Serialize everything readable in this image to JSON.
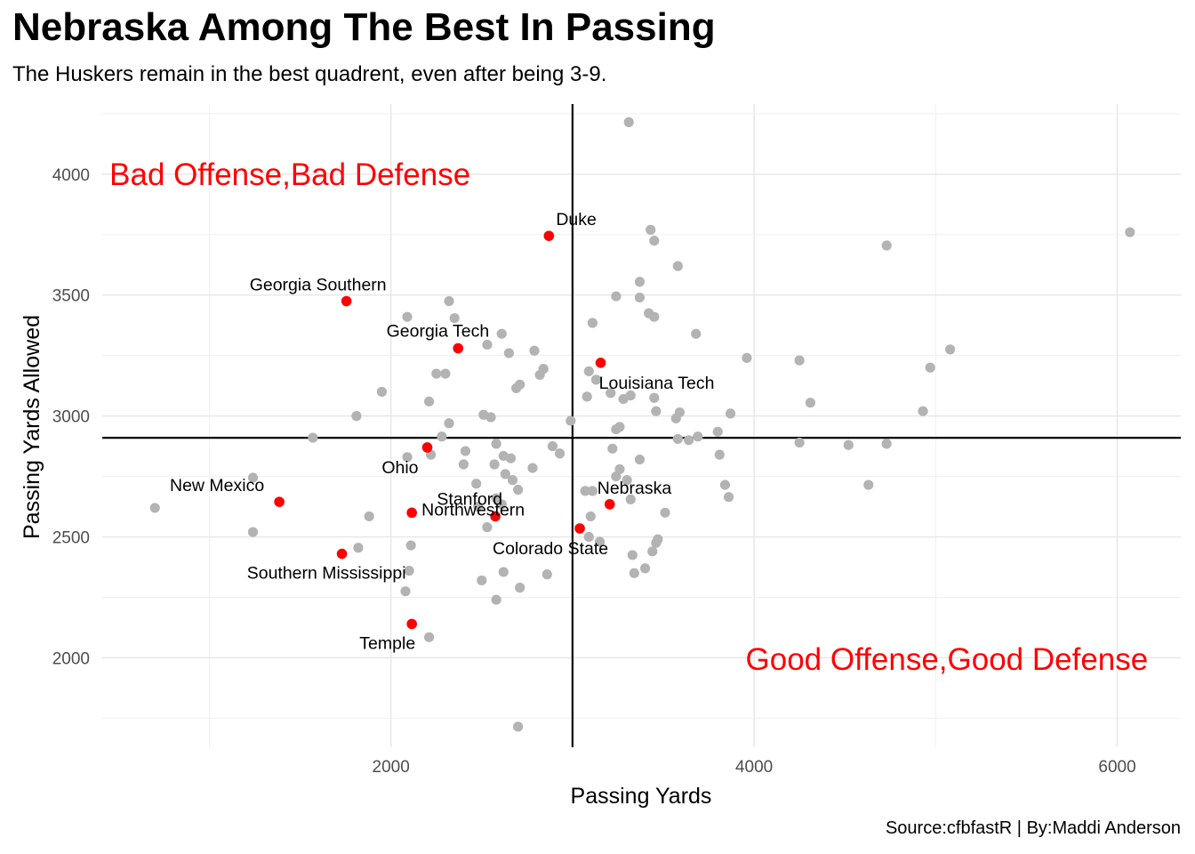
{
  "title": "Nebraska Among The Best In Passing",
  "subtitle": "The Huskers remain in the best quadrent, even after being 3-9.",
  "caption": "Source:cfbfastR | By:Maddi Anderson",
  "chart_data": {
    "type": "scatter",
    "xlabel": "Passing Yards",
    "ylabel": "Passing Yards Allowed",
    "xlim": [
      410,
      6350
    ],
    "ylim": [
      1630,
      4290
    ],
    "x_ticks": [
      2000,
      4000,
      6000
    ],
    "y_ticks": [
      2000,
      2500,
      3000,
      3500,
      4000
    ],
    "grid": true,
    "reference_lines": {
      "x": 3000,
      "y": 2910
    },
    "annotations": [
      {
        "text": "Bad Offense,Bad Defense",
        "x": 450,
        "y": 4000,
        "anchor": "start",
        "color": "#ff0000"
      },
      {
        "text": "Good Offense,Good Defense",
        "x": 6170,
        "y": 1995,
        "anchor": "end",
        "color": "#ff0000"
      }
    ],
    "highlight_color": "#ff0000",
    "base_color": "#b3b3b3",
    "highlighted": [
      {
        "label": "Duke",
        "x": 2870,
        "y": 3745,
        "label_pos": "above-right"
      },
      {
        "label": "Georgia Southern",
        "x": 1755,
        "y": 3475,
        "label_pos": "above-left"
      },
      {
        "label": "Georgia Tech",
        "x": 2370,
        "y": 3280,
        "label_pos": "above-left"
      },
      {
        "label": "Louisiana Tech",
        "x": 3155,
        "y": 3220,
        "label_pos": "below-right"
      },
      {
        "label": "Ohio",
        "x": 2200,
        "y": 2870,
        "label_pos": "below-left"
      },
      {
        "label": "New Mexico",
        "x": 1385,
        "y": 2645,
        "label_pos": "above-left"
      },
      {
        "label": "Northwestern",
        "x": 2115,
        "y": 2600,
        "label_pos": "above-left"
      },
      {
        "label": "Stanford",
        "x": 2575,
        "y": 2585,
        "label_pos": "above-left"
      },
      {
        "label": "Nebraska",
        "x": 3205,
        "y": 2635,
        "label_pos": "above-right"
      },
      {
        "label": "Colorado State",
        "x": 3040,
        "y": 2535,
        "label_pos": "below-left"
      },
      {
        "label": "Southern Mississippi",
        "x": 1730,
        "y": 2430,
        "label_pos": "below-left"
      },
      {
        "label": "Temple",
        "x": 2115,
        "y": 2140,
        "label_pos": "below-left"
      }
    ],
    "points": [
      {
        "x": 3310,
        "y": 4215
      },
      {
        "x": 6070,
        "y": 3760
      },
      {
        "x": 3430,
        "y": 3770
      },
      {
        "x": 3450,
        "y": 3725
      },
      {
        "x": 4730,
        "y": 3705
      },
      {
        "x": 3580,
        "y": 3620
      },
      {
        "x": 3370,
        "y": 3555
      },
      {
        "x": 3240,
        "y": 3495
      },
      {
        "x": 3370,
        "y": 3490
      },
      {
        "x": 2320,
        "y": 3475
      },
      {
        "x": 3420,
        "y": 3425
      },
      {
        "x": 3450,
        "y": 3410
      },
      {
        "x": 2090,
        "y": 3410
      },
      {
        "x": 2350,
        "y": 3405
      },
      {
        "x": 3110,
        "y": 3385
      },
      {
        "x": 3680,
        "y": 3340
      },
      {
        "x": 2610,
        "y": 3340
      },
      {
        "x": 2530,
        "y": 3295
      },
      {
        "x": 2790,
        "y": 3270
      },
      {
        "x": 2650,
        "y": 3260
      },
      {
        "x": 5080,
        "y": 3275
      },
      {
        "x": 3960,
        "y": 3240
      },
      {
        "x": 4250,
        "y": 3230
      },
      {
        "x": 4970,
        "y": 3200
      },
      {
        "x": 2840,
        "y": 3195
      },
      {
        "x": 3090,
        "y": 3185
      },
      {
        "x": 2820,
        "y": 3170
      },
      {
        "x": 2300,
        "y": 3175
      },
      {
        "x": 2250,
        "y": 3175
      },
      {
        "x": 3130,
        "y": 3150
      },
      {
        "x": 2710,
        "y": 3130
      },
      {
        "x": 2690,
        "y": 3115
      },
      {
        "x": 1950,
        "y": 3100
      },
      {
        "x": 3210,
        "y": 3095
      },
      {
        "x": 3320,
        "y": 3085
      },
      {
        "x": 3450,
        "y": 3075
      },
      {
        "x": 3280,
        "y": 3070
      },
      {
        "x": 3080,
        "y": 3080
      },
      {
        "x": 2210,
        "y": 3060
      },
      {
        "x": 4310,
        "y": 3055
      },
      {
        "x": 3590,
        "y": 3015
      },
      {
        "x": 4930,
        "y": 3020
      },
      {
        "x": 3460,
        "y": 3020
      },
      {
        "x": 3870,
        "y": 3010
      },
      {
        "x": 2510,
        "y": 3005
      },
      {
        "x": 2550,
        "y": 2995
      },
      {
        "x": 1810,
        "y": 3000
      },
      {
        "x": 3570,
        "y": 2990
      },
      {
        "x": 2990,
        "y": 2980
      },
      {
        "x": 2320,
        "y": 2970
      },
      {
        "x": 3260,
        "y": 2955
      },
      {
        "x": 3240,
        "y": 2945
      },
      {
        "x": 3800,
        "y": 2935
      },
      {
        "x": 3690,
        "y": 2915
      },
      {
        "x": 2280,
        "y": 2915
      },
      {
        "x": 1570,
        "y": 2910
      },
      {
        "x": 3580,
        "y": 2905
      },
      {
        "x": 3640,
        "y": 2900
      },
      {
        "x": 4250,
        "y": 2890
      },
      {
        "x": 4730,
        "y": 2885
      },
      {
        "x": 4520,
        "y": 2880
      },
      {
        "x": 2580,
        "y": 2885
      },
      {
        "x": 2890,
        "y": 2875
      },
      {
        "x": 3220,
        "y": 2865
      },
      {
        "x": 2410,
        "y": 2855
      },
      {
        "x": 2930,
        "y": 2845
      },
      {
        "x": 3810,
        "y": 2840
      },
      {
        "x": 2220,
        "y": 2840
      },
      {
        "x": 2620,
        "y": 2835
      },
      {
        "x": 2090,
        "y": 2830
      },
      {
        "x": 2660,
        "y": 2825
      },
      {
        "x": 3370,
        "y": 2820
      },
      {
        "x": 2400,
        "y": 2800
      },
      {
        "x": 2570,
        "y": 2800
      },
      {
        "x": 2780,
        "y": 2785
      },
      {
        "x": 3260,
        "y": 2780
      },
      {
        "x": 2630,
        "y": 2760
      },
      {
        "x": 3240,
        "y": 2750
      },
      {
        "x": 1240,
        "y": 2745
      },
      {
        "x": 2670,
        "y": 2735
      },
      {
        "x": 3300,
        "y": 2735
      },
      {
        "x": 2470,
        "y": 2720
      },
      {
        "x": 3840,
        "y": 2715
      },
      {
        "x": 4630,
        "y": 2715
      },
      {
        "x": 2700,
        "y": 2695
      },
      {
        "x": 3070,
        "y": 2690
      },
      {
        "x": 3110,
        "y": 2690
      },
      {
        "x": 3860,
        "y": 2665
      },
      {
        "x": 2580,
        "y": 2660
      },
      {
        "x": 3320,
        "y": 2655
      },
      {
        "x": 2610,
        "y": 2635
      },
      {
        "x": 2480,
        "y": 2625
      },
      {
        "x": 3510,
        "y": 2600
      },
      {
        "x": 1880,
        "y": 2585
      },
      {
        "x": 3100,
        "y": 2585
      },
      {
        "x": 1240,
        "y": 2520
      },
      {
        "x": 2530,
        "y": 2540
      },
      {
        "x": 3090,
        "y": 2500
      },
      {
        "x": 3470,
        "y": 2490
      },
      {
        "x": 3150,
        "y": 2480
      },
      {
        "x": 3460,
        "y": 2475
      },
      {
        "x": 2110,
        "y": 2465
      },
      {
        "x": 1820,
        "y": 2455
      },
      {
        "x": 3440,
        "y": 2440
      },
      {
        "x": 3330,
        "y": 2425
      },
      {
        "x": 3400,
        "y": 2370
      },
      {
        "x": 2100,
        "y": 2360
      },
      {
        "x": 2620,
        "y": 2355
      },
      {
        "x": 2860,
        "y": 2345
      },
      {
        "x": 3340,
        "y": 2350
      },
      {
        "x": 2500,
        "y": 2320
      },
      {
        "x": 2710,
        "y": 2290
      },
      {
        "x": 2080,
        "y": 2275
      },
      {
        "x": 2580,
        "y": 2240
      },
      {
        "x": 2210,
        "y": 2085
      },
      {
        "x": 2700,
        "y": 1715
      },
      {
        "x": 700,
        "y": 2620
      }
    ]
  }
}
